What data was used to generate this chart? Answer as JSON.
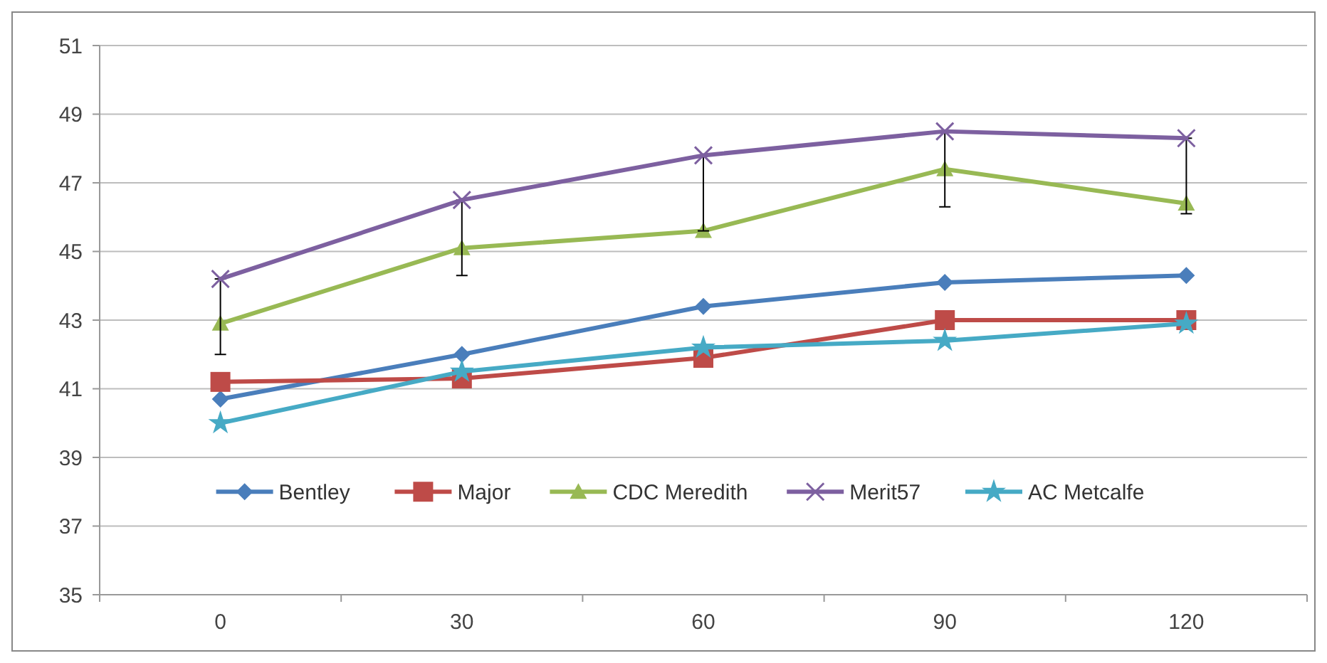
{
  "chart_data": {
    "type": "line",
    "categories": [
      "0",
      "30",
      "60",
      "90",
      "120"
    ],
    "ylim": [
      35,
      51
    ],
    "yticks": [
      35,
      37,
      39,
      41,
      43,
      45,
      47,
      49,
      51
    ],
    "grid": "y",
    "legend": "bottom",
    "series": [
      {
        "name": "Bentley",
        "color": "#4a7ebb",
        "marker": "diamond",
        "values": [
          40.7,
          42.0,
          43.4,
          44.1,
          44.3
        ]
      },
      {
        "name": "Major",
        "color": "#be4b48",
        "marker": "square",
        "values": [
          41.2,
          41.3,
          41.9,
          43.0,
          43.0
        ]
      },
      {
        "name": "CDC Meredith",
        "color": "#98b954",
        "marker": "triangle",
        "values": [
          42.9,
          45.1,
          45.6,
          47.4,
          46.4
        ]
      },
      {
        "name": "Merit57",
        "color": "#7d60a0",
        "marker": "cross",
        "values": [
          44.2,
          46.5,
          47.8,
          48.5,
          48.3
        ],
        "errors": [
          [
            42.0,
            44.2
          ],
          [
            44.3,
            46.5
          ],
          [
            45.6,
            47.8
          ],
          [
            46.3,
            48.5
          ],
          [
            46.1,
            48.3
          ]
        ]
      },
      {
        "name": "AC Metcalfe",
        "color": "#46aac5",
        "marker": "star",
        "values": [
          40.0,
          41.5,
          42.2,
          42.4,
          42.9
        ]
      }
    ]
  }
}
